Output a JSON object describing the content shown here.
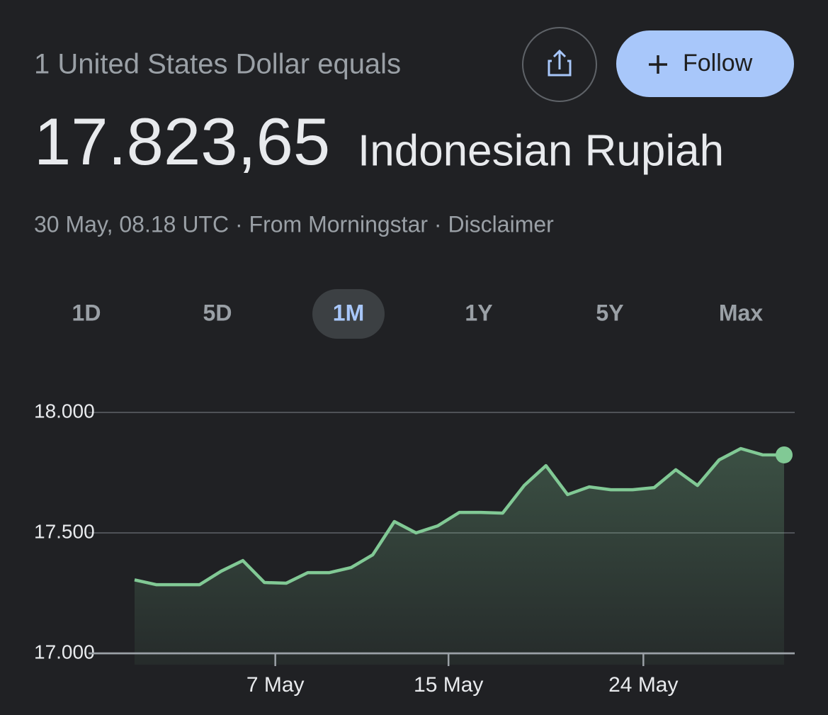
{
  "header": {
    "lead": "1 United States Dollar equals",
    "rate": "17.823,65",
    "currency": "Indonesian Rupiah",
    "follow": "Follow",
    "meta": "30 May, 08.18 UTC · From Morningstar · Disclaimer"
  },
  "ranges": {
    "items": [
      "1D",
      "5D",
      "1M",
      "1Y",
      "5Y",
      "Max"
    ],
    "selected": "1M"
  },
  "chart_data": {
    "type": "area",
    "color": "#81c995",
    "categories": [
      null,
      null,
      null,
      null,
      null,
      null,
      null,
      "7 May",
      null,
      null,
      null,
      null,
      null,
      null,
      null,
      "15 May",
      null,
      null,
      null,
      null,
      null,
      null,
      null,
      null,
      "24 May",
      null,
      null,
      null,
      null,
      null,
      null
    ],
    "values": [
      17305,
      17285,
      17285,
      17285,
      17341,
      17385,
      17294,
      17291,
      17335,
      17335,
      17356,
      17409,
      17547,
      17500,
      17529,
      17585,
      17585,
      17582,
      17697,
      17779,
      17659,
      17691,
      17679,
      17679,
      17688,
      17762,
      17697,
      17803,
      17850,
      17824,
      17823.65
    ],
    "ylim": [
      17000,
      18000
    ],
    "yticks": [
      {
        "value": 17000,
        "label": "17.000"
      },
      {
        "value": 17500,
        "label": "17.500"
      },
      {
        "value": 18000,
        "label": "18.000"
      }
    ],
    "grid": true
  }
}
